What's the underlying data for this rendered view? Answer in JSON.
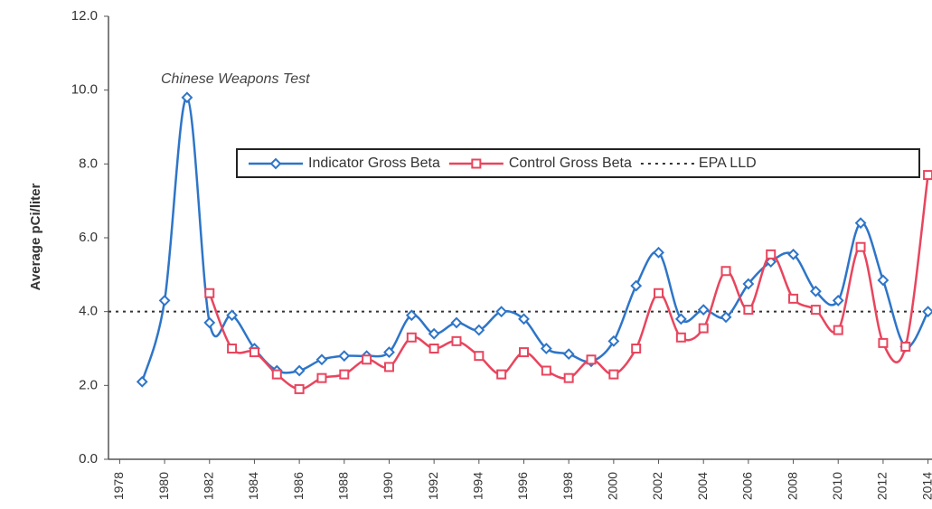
{
  "chart_data": {
    "type": "line",
    "y_label": "Average pCi/liter",
    "annotation": "Chinese Weapons Test",
    "x": [
      1979,
      1980,
      1981,
      1982,
      1983,
      1984,
      1985,
      1986,
      1987,
      1988,
      1989,
      1990,
      1991,
      1992,
      1993,
      1994,
      1995,
      1996,
      1997,
      1998,
      1999,
      2000,
      2001,
      2002,
      2003,
      2004,
      2005,
      2006,
      2007,
      2008,
      2009,
      2010,
      2011,
      2012,
      2013,
      2014
    ],
    "series": [
      {
        "name": "Indicator Gross Beta",
        "color": "#2e75c8",
        "marker": "diamond",
        "values": [
          2.1,
          4.3,
          9.8,
          3.7,
          3.9,
          3.0,
          2.4,
          2.4,
          2.7,
          2.8,
          2.8,
          2.9,
          3.9,
          3.4,
          3.7,
          3.5,
          4.0,
          3.8,
          3.0,
          2.85,
          2.65,
          3.2,
          4.7,
          5.6,
          3.8,
          4.05,
          3.85,
          4.75,
          5.35,
          5.55,
          4.55,
          4.3,
          6.4,
          4.85,
          3.05,
          4.0
        ]
      },
      {
        "name": "Control Gross Beta",
        "color": "#e8455e",
        "marker": "square",
        "values": [
          null,
          null,
          null,
          4.5,
          3.0,
          2.9,
          2.3,
          1.9,
          2.2,
          2.3,
          2.7,
          2.5,
          3.3,
          3.0,
          3.2,
          2.8,
          2.3,
          2.9,
          2.4,
          2.2,
          2.7,
          2.3,
          3.0,
          4.5,
          3.3,
          3.55,
          5.1,
          4.05,
          5.55,
          4.35,
          4.05,
          3.5,
          5.75,
          3.15,
          3.05,
          7.7
        ]
      }
    ],
    "hline": {
      "name": "EPA LLD",
      "value": 4.0,
      "color": "#333333"
    },
    "xlim": [
      1977.5,
      2014.5
    ],
    "xticks": [
      1978,
      1980,
      1982,
      1984,
      1986,
      1988,
      1990,
      1992,
      1994,
      1996,
      1998,
      2000,
      2002,
      2004,
      2006,
      2008,
      2010,
      2012,
      2014
    ],
    "ylim": [
      0,
      12
    ],
    "yticks": [
      {
        "value": 0,
        "label": "0.0"
      },
      {
        "value": 2,
        "label": "2.0"
      },
      {
        "value": 4,
        "label": "4.0"
      },
      {
        "value": 6,
        "label": "6.0"
      },
      {
        "value": 8,
        "label": "8.0"
      },
      {
        "value": 10,
        "label": "10.0"
      },
      {
        "value": 12,
        "label": "12.0"
      }
    ]
  }
}
